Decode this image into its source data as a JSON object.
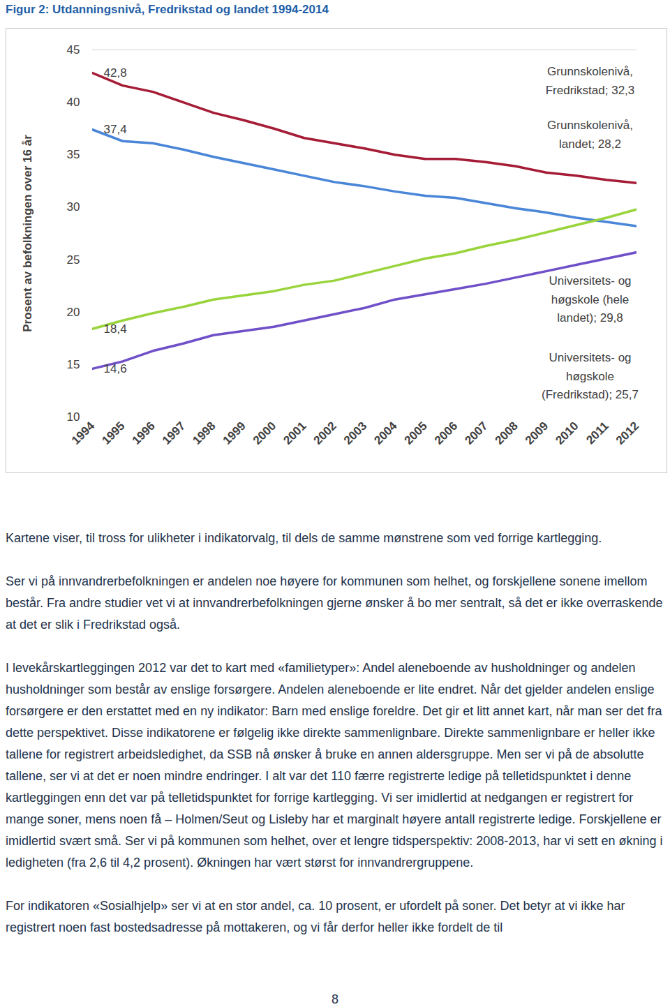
{
  "chart_data": {
    "type": "line",
    "title": "Figur 2: Utdanningsnivå, Fredrikstad og landet 1994-2014",
    "y_label": "Prosent av befolkningen over 16 år",
    "x": [
      1994,
      1995,
      1996,
      1997,
      1998,
      1999,
      2000,
      2001,
      2002,
      2003,
      2004,
      2005,
      2006,
      2007,
      2008,
      2009,
      2010,
      2011,
      2012
    ],
    "xlim": [
      1994,
      2012
    ],
    "xticks": [
      1994,
      1995,
      1996,
      1997,
      1998,
      1999,
      2000,
      2001,
      2002,
      2003,
      2004,
      2005,
      2006,
      2007,
      2008,
      2009,
      2010,
      2011,
      2012
    ],
    "ylim": [
      10,
      45
    ],
    "yticks": [
      10,
      15,
      20,
      25,
      30,
      35,
      40,
      45
    ],
    "grid": false,
    "series": [
      {
        "name": "Grunnskolenivå, Fredrikstad; 32,3",
        "color": "#a51c36",
        "values": [
          42.8,
          41.6,
          41.0,
          40.0,
          39.0,
          38.3,
          37.5,
          36.6,
          36.1,
          35.6,
          35.0,
          34.6,
          34.6,
          34.3,
          33.9,
          33.3,
          33.0,
          32.6,
          32.3
        ],
        "value_labels": [
          "42,8",
          null,
          null,
          null,
          null,
          null,
          null,
          null,
          null,
          null,
          null,
          null,
          null,
          null,
          null,
          null,
          null,
          null,
          null
        ]
      },
      {
        "name": "Grunnskolenivå, landet; 28,2",
        "color": "#4a86d8",
        "values": [
          37.4,
          36.3,
          36.1,
          35.5,
          34.8,
          34.2,
          33.6,
          33.0,
          32.4,
          32.0,
          31.5,
          31.1,
          30.9,
          30.4,
          29.9,
          29.5,
          29.0,
          28.6,
          28.2
        ],
        "value_labels": [
          "37,4",
          null,
          null,
          null,
          null,
          null,
          null,
          null,
          null,
          null,
          null,
          null,
          null,
          null,
          null,
          null,
          null,
          null,
          null
        ]
      },
      {
        "name": "Universitets- og høgskole (hele landet); 29,8",
        "color": "#99d43c",
        "values": [
          18.4,
          19.2,
          19.9,
          20.5,
          21.2,
          21.6,
          22.0,
          22.6,
          23.0,
          23.7,
          24.4,
          25.1,
          25.6,
          26.3,
          26.9,
          27.6,
          28.3,
          29.0,
          29.8
        ],
        "value_labels": [
          "18,4",
          null,
          null,
          null,
          null,
          null,
          null,
          null,
          null,
          null,
          null,
          null,
          null,
          null,
          null,
          null,
          null,
          null,
          null
        ]
      },
      {
        "name": "Universitets- og høgskole (Fredrikstad); 25,7",
        "color": "#7050c8",
        "values": [
          14.6,
          15.3,
          16.3,
          17.0,
          17.8,
          18.2,
          18.6,
          19.2,
          19.8,
          20.4,
          21.2,
          21.7,
          22.2,
          22.7,
          23.3,
          23.9,
          24.5,
          25.1,
          25.7
        ],
        "value_labels": [
          "14,6",
          null,
          null,
          null,
          null,
          null,
          null,
          null,
          null,
          null,
          null,
          null,
          null,
          null,
          null,
          null,
          null,
          null,
          null
        ]
      }
    ]
  },
  "paragraphs": [
    "Kartene viser, til tross for ulikheter i indikatorvalg, til dels de samme mønstrene som ved forrige kartlegging.",
    "Ser vi på innvandrerbefolkningen er andelen noe høyere for kommunen som helhet, og forskjellene sonene imellom består. Fra andre studier vet vi at innvandrerbefolkningen gjerne ønsker å bo mer sentralt, så det er ikke overraskende at det er slik i Fredrikstad også.",
    "I levekårskartleggingen 2012 var det to kart med «familietyper»: Andel aleneboende av husholdninger og andelen husholdninger som består av enslige forsørgere. Andelen aleneboende er lite endret. Når det gjelder andelen enslige forsørgere er den erstattet med en ny indikator: Barn med enslige foreldre. Det gir et litt annet kart, når man ser det fra dette perspektivet. Disse indikatorene er følgelig ikke direkte sammenlignbare. Direkte sammenlignbare er heller ikke tallene for registrert arbeidsledighet, da SSB nå ønsker å bruke en annen aldersgruppe. Men ser vi på de absolutte tallene, ser vi at det er noen mindre endringer. I alt var det 110 færre registrerte ledige på telletidspunktet i denne kartleggingen enn det var på telletidspunktet for forrige kartlegging. Vi ser imidlertid at nedgangen er registrert for mange soner, mens noen få – Holmen/Seut og Lisleby har et marginalt høyere antall registrerte ledige. Forskjellene er imidlertid svært små. Ser vi på kommunen som helhet, over et lengre tidsperspektiv: 2008-2013, har vi sett en økning i ledigheten (fra 2,6 til 4,2 prosent). Økningen har vært størst for innvandrergruppene.",
    "For indikatoren «Sosialhjelp» ser vi at en stor andel, ca. 10 prosent, er ufordelt på soner. Det betyr at vi ikke har registrert noen fast bostedsadresse på mottakeren, og vi får derfor heller ikke fordelt de til"
  ],
  "page_number": 8
}
